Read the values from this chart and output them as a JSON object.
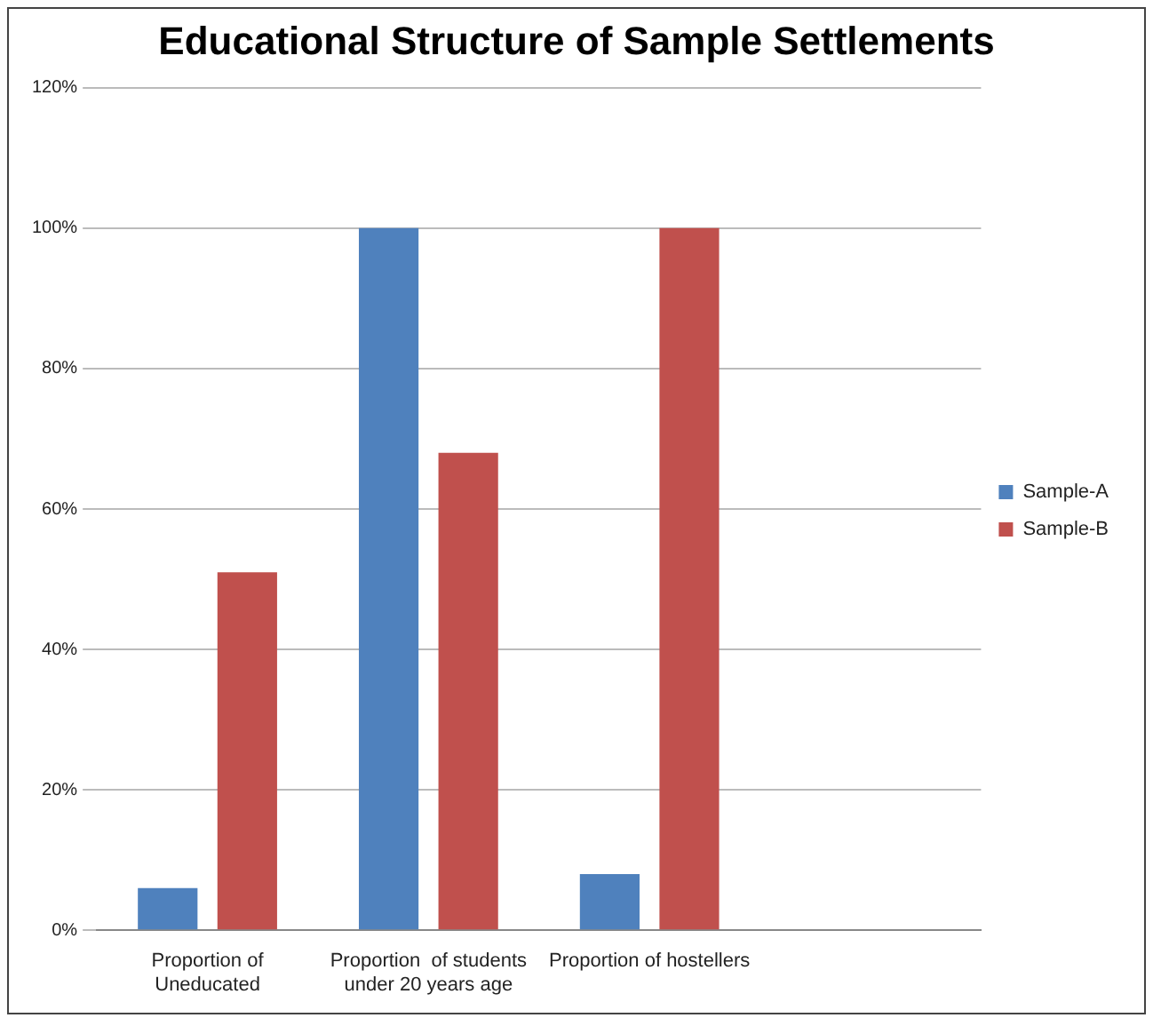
{
  "chart_data": {
    "type": "bar",
    "title": "Educational Structure of Sample Settlements",
    "categories": [
      "Proportion of Uneducated",
      "Proportion  of students under 20 years age",
      "Proportion of hostellers",
      null
    ],
    "series": [
      {
        "name": "Sample-A",
        "color": "#4f81bd",
        "values": [
          6,
          100,
          8,
          null
        ]
      },
      {
        "name": "Sample-B",
        "color": "#c0504d",
        "values": [
          51,
          68,
          100,
          null
        ]
      }
    ],
    "ylim": [
      0,
      120
    ],
    "yticks": [
      {
        "value": 0,
        "label": "0%"
      },
      {
        "value": 20,
        "label": "20%"
      },
      {
        "value": 40,
        "label": "40%"
      },
      {
        "value": 60,
        "label": "60%"
      },
      {
        "value": 80,
        "label": "80%"
      },
      {
        "value": 100,
        "label": "100%"
      },
      {
        "value": 120,
        "label": "120%"
      }
    ],
    "grid": "y",
    "legend": "right"
  }
}
